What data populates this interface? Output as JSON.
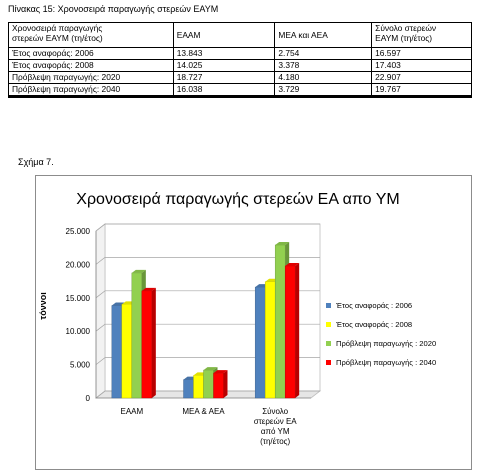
{
  "caption": "Πίνακας 15: Χρονοσειρά παραγωγής στερεών ΕΑΥΜ",
  "table": {
    "header": {
      "col1_line1": "Χρονοσειρά παραγωγής",
      "col1_line2": "στερεών ΕΑΥΜ (τη/έτος)",
      "col2": "ΕΑΑΜ",
      "col3": "ΜΕΑ και ΑΕΑ",
      "col4_line1": "Σύνολο στερεών",
      "col4_line2": "ΕΑΥΜ (τη/έτος)"
    },
    "rows": [
      {
        "label": "Έτος αναφοράς: 2006",
        "eaam": "13.843",
        "mea": "2.754",
        "total": "16.597"
      },
      {
        "label": "Έτος αναφοράς: 2008",
        "eaam": "14.025",
        "mea": "3.378",
        "total": "17.403"
      },
      {
        "label": "Πρόβλεψη παραγωγής: 2020",
        "eaam": "18.727",
        "mea": "4.180",
        "total": "22.907"
      },
      {
        "label": "Πρόβλεψη παραγωγής: 2040",
        "eaam": "16.038",
        "mea": "3.729",
        "total": "19.767"
      }
    ]
  },
  "figure_label": "Σχήμα 7.",
  "chart_data": {
    "type": "bar",
    "title": "Χρονοσειρά παραγωγής στερεών ΕΑ απο ΥΜ",
    "ylabel": "τόννοι",
    "xlabel": "",
    "ylim": [
      0,
      25000
    ],
    "yticks": [
      0,
      5000,
      10000,
      15000,
      20000,
      25000
    ],
    "ytick_labels": [
      "0",
      "5.000",
      "10.000",
      "15.000",
      "20.000",
      "25.000"
    ],
    "categories": [
      [
        "ΕΑΑΜ"
      ],
      [
        "ΜΕΑ & ΑΕΑ"
      ],
      [
        "Σύνολο",
        "στερεών ΕΑ",
        "από ΥΜ",
        "(τη/έτος)"
      ]
    ],
    "series": [
      {
        "name": "Έτος αναφοράς : 2006",
        "color": "#4f81bd",
        "values": [
          13843,
          2754,
          16597
        ]
      },
      {
        "name": "Έτος αναφοράς : 2008",
        "color": "#ffff00",
        "values": [
          14025,
          3378,
          17403
        ]
      },
      {
        "name": "Πρόβλεψη παραγωγής : 2020",
        "color": "#92d050",
        "values": [
          18727,
          4180,
          22907
        ]
      },
      {
        "name": "Πρόβλεψη παραγωγής : 2040",
        "color": "#ff0000",
        "values": [
          16038,
          3729,
          19767
        ]
      }
    ],
    "grid": true,
    "legend": "right",
    "style": "3d-bar"
  }
}
